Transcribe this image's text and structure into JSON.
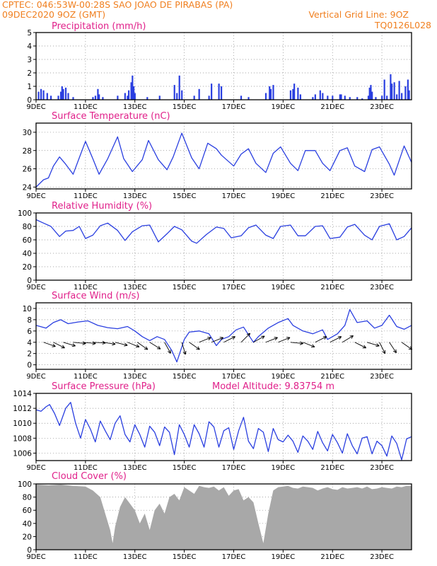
{
  "header": {
    "left_line1": "CPTEC:   046:53W-00:28S  SAO JOAO DE PIRABAS (PA)",
    "left_line2": "09DEC2020 9OZ (GMT)",
    "right_line1": "Vertical Grid Line: 9OZ",
    "right_line2": "TQ0126L028"
  },
  "colors": {
    "header": "#f07f1f",
    "title": "#e0208a",
    "series": "#2a3fe0",
    "grid": "#888888",
    "cloud": "#a8a8a8",
    "arrow": "#000000"
  },
  "x_axis": {
    "ticks": [
      "9DEC",
      "11DEC",
      "13DEC",
      "15DEC",
      "17DEC",
      "19DEC",
      "21DEC",
      "23DEC"
    ],
    "tick_days": [
      0,
      2,
      4,
      6,
      8,
      10,
      12,
      14
    ],
    "start_label": "9DEC 2020",
    "end_day": 15.2
  },
  "chart_data": [
    {
      "type": "bar",
      "title": "Precipitation  (mm/h)",
      "ylim": [
        0,
        5
      ],
      "yticks": [
        0,
        1,
        2,
        3,
        4,
        5
      ],
      "bars": [
        [
          0.1,
          0.6
        ],
        [
          0.2,
          0.8
        ],
        [
          0.3,
          0.7
        ],
        [
          0.45,
          0.5
        ],
        [
          0.6,
          0.3
        ],
        [
          0.9,
          0.3
        ],
        [
          1.0,
          0.6
        ],
        [
          1.05,
          1.0
        ],
        [
          1.1,
          0.8
        ],
        [
          1.2,
          0.9
        ],
        [
          1.3,
          0.5
        ],
        [
          1.5,
          0.2
        ],
        [
          2.3,
          0.2
        ],
        [
          2.4,
          0.3
        ],
        [
          2.5,
          0.8
        ],
        [
          2.55,
          0.4
        ],
        [
          2.7,
          0.2
        ],
        [
          3.3,
          0.3
        ],
        [
          3.6,
          0.5
        ],
        [
          3.7,
          0.3
        ],
        [
          3.75,
          0.7
        ],
        [
          3.85,
          1.3
        ],
        [
          3.9,
          1.8
        ],
        [
          3.95,
          1.0
        ],
        [
          4.0,
          0.5
        ],
        [
          4.5,
          0.2
        ],
        [
          5.0,
          0.3
        ],
        [
          5.6,
          1.1
        ],
        [
          5.7,
          0.5
        ],
        [
          5.8,
          1.8
        ],
        [
          5.9,
          0.7
        ],
        [
          6.4,
          0.3
        ],
        [
          6.6,
          0.8
        ],
        [
          7.0,
          0.3
        ],
        [
          7.1,
          1.2
        ],
        [
          7.4,
          1.2
        ],
        [
          7.5,
          1.0
        ],
        [
          8.3,
          0.3
        ],
        [
          8.6,
          0.2
        ],
        [
          9.3,
          0.5
        ],
        [
          9.45,
          1.0
        ],
        [
          9.5,
          0.8
        ],
        [
          9.6,
          1.1
        ],
        [
          10.3,
          0.7
        ],
        [
          10.4,
          0.8
        ],
        [
          10.45,
          1.2
        ],
        [
          10.6,
          0.9
        ],
        [
          10.7,
          0.4
        ],
        [
          11.2,
          0.2
        ],
        [
          11.3,
          0.4
        ],
        [
          11.5,
          0.7
        ],
        [
          11.6,
          0.5
        ],
        [
          11.8,
          0.3
        ],
        [
          12.0,
          0.3
        ],
        [
          12.3,
          0.4
        ],
        [
          12.35,
          0.4
        ],
        [
          12.5,
          0.3
        ],
        [
          12.7,
          0.2
        ],
        [
          13.0,
          0.2
        ],
        [
          13.2,
          0.1
        ],
        [
          13.45,
          0.3
        ],
        [
          13.5,
          0.9
        ],
        [
          13.55,
          1.1
        ],
        [
          13.6,
          0.6
        ],
        [
          13.75,
          0.2
        ],
        [
          14.0,
          0.3
        ],
        [
          14.1,
          1.5
        ],
        [
          14.2,
          0.3
        ],
        [
          14.35,
          1.9
        ],
        [
          14.4,
          1.2
        ],
        [
          14.5,
          1.3
        ],
        [
          14.6,
          0.4
        ],
        [
          14.7,
          1.4
        ],
        [
          14.8,
          0.5
        ],
        [
          14.95,
          1.0
        ],
        [
          15.05,
          1.5
        ],
        [
          15.1,
          0.7
        ]
      ]
    },
    {
      "type": "line",
      "title": "Surface Temperature (nC)",
      "ylim": [
        23.8,
        31
      ],
      "yticks": [
        24,
        26,
        28,
        30
      ],
      "x": [
        0,
        0.3,
        0.5,
        0.7,
        0.95,
        1.2,
        1.5,
        1.75,
        2.0,
        2.3,
        2.55,
        2.9,
        3.3,
        3.55,
        3.9,
        4.3,
        4.55,
        4.95,
        5.3,
        5.55,
        5.9,
        6.3,
        6.6,
        6.95,
        7.3,
        7.5,
        8.0,
        8.3,
        8.6,
        8.9,
        9.3,
        9.6,
        9.9,
        10.3,
        10.6,
        10.9,
        11.3,
        11.6,
        11.9,
        12.3,
        12.6,
        12.9,
        13.3,
        13.6,
        13.9,
        14.3,
        14.5,
        14.9,
        15.2
      ],
      "y": [
        24.0,
        24.8,
        25.0,
        26.3,
        27.3,
        26.5,
        25.4,
        27.2,
        29.0,
        27.1,
        25.4,
        27.1,
        29.5,
        27.1,
        25.7,
        27.0,
        29.1,
        27.0,
        25.9,
        27.3,
        29.9,
        27.2,
        26.0,
        28.8,
        28.2,
        27.5,
        26.3,
        27.6,
        28.2,
        26.6,
        25.6,
        27.7,
        28.4,
        26.6,
        25.8,
        28.0,
        28.0,
        26.6,
        25.8,
        28.0,
        28.3,
        26.3,
        25.7,
        28.1,
        28.4,
        26.5,
        25.3,
        28.5,
        26.7
      ]
    },
    {
      "type": "line",
      "title": "Relative Humidity (%)",
      "ylim": [
        0,
        100
      ],
      "yticks": [
        0,
        20,
        40,
        60,
        80,
        100
      ],
      "x": [
        0,
        0.3,
        0.6,
        0.95,
        1.2,
        1.5,
        1.75,
        2.0,
        2.3,
        2.6,
        2.9,
        3.3,
        3.6,
        3.9,
        4.3,
        4.6,
        4.95,
        5.3,
        5.6,
        5.9,
        6.3,
        6.5,
        6.9,
        7.3,
        7.6,
        7.9,
        8.3,
        8.6,
        8.9,
        9.3,
        9.6,
        9.9,
        10.3,
        10.6,
        10.9,
        11.3,
        11.6,
        11.9,
        12.3,
        12.6,
        12.9,
        13.3,
        13.6,
        13.9,
        14.3,
        14.6,
        14.9,
        15.2
      ],
      "y": [
        90,
        85,
        80,
        65,
        73,
        74,
        80,
        62,
        67,
        81,
        85,
        74,
        59,
        72,
        81,
        82,
        57,
        69,
        80,
        75,
        58,
        55,
        68,
        79,
        77,
        63,
        66,
        78,
        82,
        67,
        62,
        80,
        82,
        66,
        66,
        80,
        81,
        62,
        64,
        79,
        83,
        67,
        60,
        80,
        84,
        60,
        65,
        78
      ]
    },
    {
      "type": "line",
      "title": "Surface Wind (m/s)",
      "ylim": [
        -0.8,
        11
      ],
      "yticks": [
        0,
        2,
        4,
        6,
        8,
        10
      ],
      "x": [
        0,
        0.4,
        0.7,
        1.0,
        1.3,
        1.7,
        2.1,
        2.5,
        2.9,
        3.3,
        3.7,
        4.0,
        4.3,
        4.6,
        4.9,
        5.2,
        5.5,
        5.7,
        6.0,
        6.2,
        6.6,
        7.0,
        7.3,
        7.5,
        7.8,
        8.1,
        8.4,
        8.8,
        9.0,
        9.4,
        9.8,
        10.2,
        10.4,
        10.8,
        11.2,
        11.6,
        11.8,
        12.2,
        12.5,
        12.7,
        13.0,
        13.4,
        13.7,
        14.0,
        14.3,
        14.6,
        14.9,
        15.2
      ],
      "y": [
        7.0,
        6.5,
        7.5,
        8.0,
        7.3,
        7.6,
        7.8,
        7.0,
        6.6,
        6.4,
        6.8,
        6.0,
        5.0,
        4.3,
        5.0,
        4.5,
        2.5,
        0.5,
        4.5,
        5.8,
        6.0,
        5.5,
        3.4,
        4.5,
        5.0,
        6.2,
        6.7,
        4.0,
        5.0,
        6.5,
        7.5,
        8.2,
        7.0,
        6.0,
        5.5,
        6.2,
        4.5,
        5.5,
        7.0,
        9.8,
        7.5,
        7.8,
        6.5,
        7.0,
        8.8,
        6.8,
        6.3,
        7.0
      ],
      "wind_vectors": [
        [
          0.3,
          1,
          0.35
        ],
        [
          0.7,
          1,
          0.5
        ],
        [
          1.1,
          1,
          0.3
        ],
        [
          1.5,
          1,
          0.1
        ],
        [
          1.9,
          1,
          0.1
        ],
        [
          2.3,
          1,
          0.05
        ],
        [
          2.7,
          1,
          0.15
        ],
        [
          3.2,
          1,
          0.25
        ],
        [
          3.7,
          1,
          0.4
        ],
        [
          4.1,
          1,
          0.7
        ],
        [
          4.6,
          0.8,
          0.5
        ],
        [
          5.2,
          0.5,
          0.9
        ],
        [
          5.9,
          0.3,
          1
        ],
        [
          6.2,
          1,
          0.7
        ],
        [
          6.6,
          1,
          -0.4
        ],
        [
          7.1,
          1,
          -0.4
        ],
        [
          7.6,
          1,
          -0.5
        ],
        [
          8.3,
          0.7,
          -0.7
        ],
        [
          8.8,
          0.9,
          -0.5
        ],
        [
          9.3,
          1,
          -0.4
        ],
        [
          9.8,
          1,
          -0.4
        ],
        [
          10.3,
          1,
          0.1
        ],
        [
          10.8,
          1,
          0.4
        ],
        [
          11.3,
          1,
          -0.5
        ],
        [
          11.9,
          1,
          -0.5
        ],
        [
          12.4,
          1,
          -0.6
        ],
        [
          12.9,
          1,
          0.5
        ],
        [
          13.4,
          1,
          0.3
        ],
        [
          13.9,
          0.5,
          1
        ],
        [
          14.3,
          0.6,
          0.9
        ],
        [
          14.8,
          1,
          0.7
        ]
      ]
    },
    {
      "type": "line",
      "title": "Surface Pressure (hPa)",
      "annotation": "Model Altitude: 9.83754 m",
      "ylim": [
        1005,
        1014
      ],
      "yticks": [
        1006,
        1008,
        1010,
        1012,
        1014
      ],
      "x": [
        0,
        0.2,
        0.4,
        0.55,
        0.75,
        0.95,
        1.2,
        1.4,
        1.6,
        1.8,
        2.0,
        2.2,
        2.4,
        2.6,
        2.8,
        3.0,
        3.2,
        3.4,
        3.6,
        3.8,
        4.0,
        4.2,
        4.4,
        4.6,
        4.8,
        5.0,
        5.2,
        5.4,
        5.6,
        5.8,
        6.0,
        6.2,
        6.4,
        6.6,
        6.8,
        7.0,
        7.2,
        7.4,
        7.6,
        7.8,
        8.0,
        8.2,
        8.4,
        8.6,
        8.8,
        9.0,
        9.2,
        9.4,
        9.6,
        9.8,
        10.0,
        10.2,
        10.4,
        10.6,
        10.8,
        11.0,
        11.2,
        11.4,
        11.6,
        11.8,
        12.0,
        12.2,
        12.4,
        12.6,
        12.8,
        13.0,
        13.2,
        13.4,
        13.6,
        13.8,
        14.0,
        14.2,
        14.4,
        14.6,
        14.8,
        15.0,
        15.2
      ],
      "y": [
        1011.8,
        1011.6,
        1012.2,
        1012.5,
        1011.3,
        1009.7,
        1012.0,
        1012.8,
        1010.0,
        1008.0,
        1010.5,
        1009.2,
        1007.5,
        1010.3,
        1009.0,
        1007.8,
        1010.0,
        1011.0,
        1008.5,
        1007.5,
        1009.8,
        1008.5,
        1006.8,
        1009.6,
        1008.8,
        1007.0,
        1009.5,
        1008.8,
        1005.8,
        1009.8,
        1008.5,
        1006.8,
        1009.8,
        1008.6,
        1006.8,
        1010.2,
        1009.5,
        1006.8,
        1009.0,
        1009.4,
        1006.5,
        1009.0,
        1010.8,
        1007.6,
        1006.6,
        1009.3,
        1008.8,
        1006.2,
        1009.3,
        1007.8,
        1007.5,
        1008.4,
        1007.6,
        1006.1,
        1008.3,
        1007.6,
        1006.5,
        1008.9,
        1007.4,
        1006.3,
        1008.5,
        1007.4,
        1006.0,
        1008.6,
        1007.0,
        1005.9,
        1008.0,
        1008.2,
        1005.9,
        1007.6,
        1007.0,
        1005.6,
        1008.3,
        1007.3,
        1005.1,
        1007.9,
        1008.2
      ]
    },
    {
      "type": "area",
      "title": "Cloud Cover (%)",
      "ylim": [
        0,
        100
      ],
      "yticks": [
        0,
        20,
        40,
        60,
        80,
        100
      ],
      "x": [
        0,
        0.5,
        1.0,
        1.5,
        2.0,
        2.3,
        2.6,
        2.8,
        3.0,
        3.1,
        3.2,
        3.4,
        3.6,
        3.8,
        4.0,
        4.2,
        4.4,
        4.6,
        4.8,
        5.0,
        5.2,
        5.4,
        5.6,
        5.8,
        6.0,
        6.2,
        6.4,
        6.6,
        6.8,
        7.0,
        7.2,
        7.4,
        7.6,
        7.8,
        8.0,
        8.2,
        8.4,
        8.6,
        8.8,
        9.0,
        9.2,
        9.4,
        9.6,
        9.8,
        10.0,
        10.2,
        10.4,
        10.6,
        10.8,
        11.0,
        11.2,
        11.4,
        11.6,
        11.8,
        12.0,
        12.2,
        12.4,
        12.6,
        12.8,
        13.0,
        13.2,
        13.4,
        13.6,
        13.8,
        14.0,
        14.2,
        14.4,
        14.6,
        14.8,
        15.0,
        15.2
      ],
      "y": [
        99,
        98,
        99,
        97,
        96,
        90,
        80,
        55,
        30,
        10,
        35,
        65,
        80,
        70,
        60,
        40,
        55,
        30,
        60,
        70,
        55,
        80,
        85,
        75,
        95,
        90,
        85,
        97,
        95,
        94,
        96,
        90,
        95,
        82,
        90,
        92,
        75,
        80,
        72,
        40,
        10,
        55,
        90,
        95,
        96,
        97,
        94,
        93,
        96,
        95,
        94,
        90,
        93,
        95,
        92,
        91,
        95,
        93,
        94,
        95,
        93,
        96,
        92,
        93,
        95,
        94,
        93,
        96,
        95,
        97,
        97
      ]
    }
  ]
}
